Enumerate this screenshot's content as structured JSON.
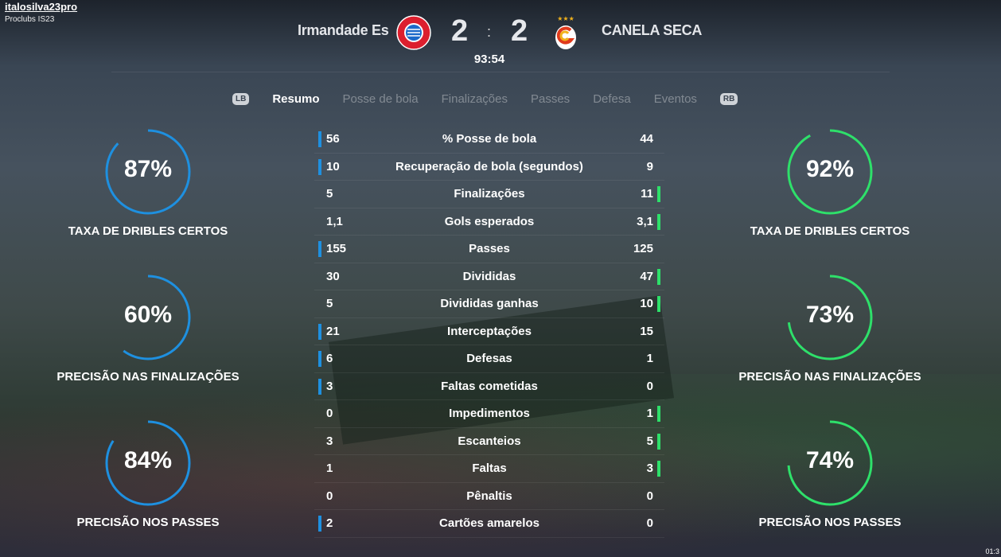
{
  "overlay": {
    "user": "italosilva23pro",
    "subtitle": "Proclubs IS23",
    "clock": "01:3"
  },
  "match": {
    "home": "Irmandade Es",
    "away": "CANELA SECA",
    "home_score": "2",
    "away_score": "2",
    "separator": ":",
    "time": "93:54",
    "home_color": "#dc1f2e",
    "away_color": "#f2b21b"
  },
  "tabs": {
    "lb": "LB",
    "rb": "RB",
    "items": [
      "Resumo",
      "Posse de bola",
      "Finalizações",
      "Passes",
      "Defesa",
      "Eventos"
    ],
    "active": 0
  },
  "colors": {
    "home": "#1e90e0",
    "away": "#2ee06a"
  },
  "stats": [
    {
      "label": "% Posse de bola",
      "home": "56",
      "away": "44",
      "lead": "home"
    },
    {
      "label": "Recuperação de bola (segundos)",
      "home": "10",
      "away": "9",
      "lead": "home"
    },
    {
      "label": "Finalizações",
      "home": "5",
      "away": "11",
      "lead": "away"
    },
    {
      "label": "Gols esperados",
      "home": "1,1",
      "away": "3,1",
      "lead": "away"
    },
    {
      "label": "Passes",
      "home": "155",
      "away": "125",
      "lead": "home"
    },
    {
      "label": "Divididas",
      "home": "30",
      "away": "47",
      "lead": "away"
    },
    {
      "label": "Divididas ganhas",
      "home": "5",
      "away": "10",
      "lead": "away"
    },
    {
      "label": "Interceptações",
      "home": "21",
      "away": "15",
      "lead": "home"
    },
    {
      "label": "Defesas",
      "home": "6",
      "away": "1",
      "lead": "home"
    },
    {
      "label": "Faltas cometidas",
      "home": "3",
      "away": "0",
      "lead": "home"
    },
    {
      "label": "Impedimentos",
      "home": "0",
      "away": "1",
      "lead": "away"
    },
    {
      "label": "Escanteios",
      "home": "3",
      "away": "5",
      "lead": "away"
    },
    {
      "label": "Faltas",
      "home": "1",
      "away": "3",
      "lead": "away"
    },
    {
      "label": "Pênaltis",
      "home": "0",
      "away": "0",
      "lead": "none"
    },
    {
      "label": "Cartões amarelos",
      "home": "2",
      "away": "0",
      "lead": "home"
    }
  ],
  "gauges": {
    "home": [
      {
        "value": 87,
        "text": "87%",
        "label": "TAXA DE DRIBLES CERTOS"
      },
      {
        "value": 60,
        "text": "60%",
        "label": "PRECISÃO NAS FINALIZAÇÕES"
      },
      {
        "value": 84,
        "text": "84%",
        "label": "PRECISÃO NOS PASSES"
      }
    ],
    "away": [
      {
        "value": 92,
        "text": "92%",
        "label": "TAXA DE DRIBLES CERTOS"
      },
      {
        "value": 73,
        "text": "73%",
        "label": "PRECISÃO NAS FINALIZAÇÕES"
      },
      {
        "value": 74,
        "text": "74%",
        "label": "PRECISÃO NOS PASSES"
      }
    ]
  }
}
